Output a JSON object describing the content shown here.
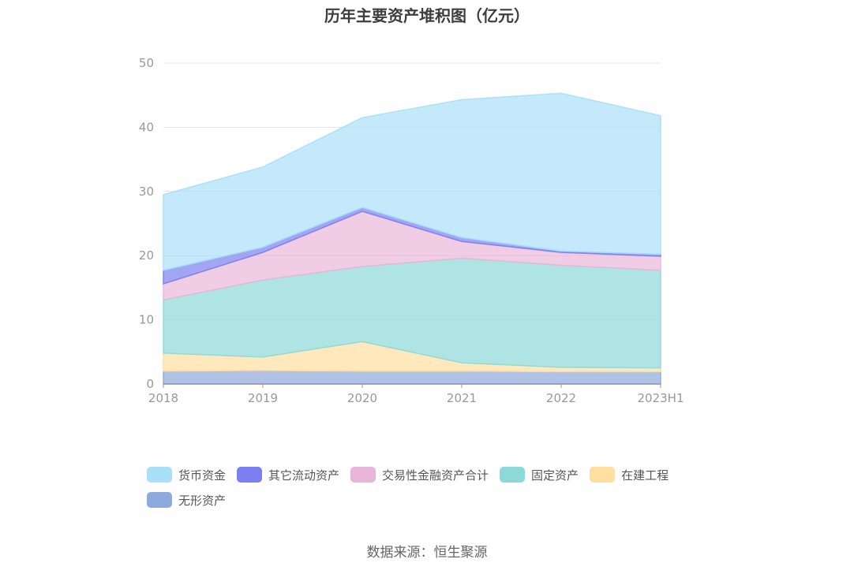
{
  "title": "历年主要资产堆积图（亿元）",
  "source": "数据来源：恒生聚源",
  "chart_data": {
    "type": "area",
    "stacked": true,
    "categories": [
      "2018",
      "2019",
      "2020",
      "2021",
      "2022",
      "2023H1"
    ],
    "ylim": [
      0,
      50
    ],
    "yticks": [
      0,
      10,
      20,
      30,
      40,
      50
    ],
    "grid": true,
    "legend_position": "bottom",
    "series": [
      {
        "name": "无形资产",
        "color": "#8eaadd",
        "values": [
          2.0,
          2.1,
          2.0,
          2.0,
          1.9,
          1.9
        ]
      },
      {
        "name": "在建工程",
        "color": "#ffdfa0",
        "values": [
          2.8,
          2.1,
          4.6,
          1.3,
          0.7,
          0.6
        ]
      },
      {
        "name": "固定资产",
        "color": "#8dd9d9",
        "values": [
          8.3,
          12.0,
          11.7,
          16.3,
          15.9,
          15.2
        ]
      },
      {
        "name": "交易性金融资产合计",
        "color": "#e9b6da",
        "values": [
          2.5,
          4.3,
          8.6,
          2.6,
          2.0,
          2.2
        ]
      },
      {
        "name": "其它流动资产",
        "color": "#7b7ff0",
        "values": [
          2.1,
          0.8,
          0.6,
          0.6,
          0.2,
          0.3
        ]
      },
      {
        "name": "货币资金",
        "color": "#a9dff8",
        "values": [
          11.8,
          12.5,
          14.0,
          21.5,
          24.6,
          21.6
        ]
      }
    ]
  }
}
